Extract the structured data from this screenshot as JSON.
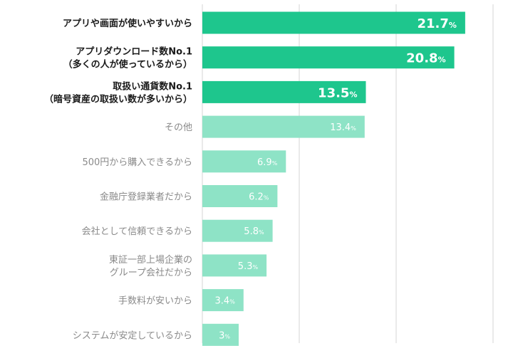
{
  "chart_data": {
    "type": "bar",
    "orientation": "horizontal",
    "unit": "%",
    "categories": [
      [
        "アプリや画面が使いやすいから"
      ],
      [
        "アプリダウンロード数No.1",
        "（多くの人が使っているから）"
      ],
      [
        "取扱い通貨数No.1",
        "（暗号資産の取扱い数が多いから）"
      ],
      [
        "その他"
      ],
      [
        "500円から購入できるから"
      ],
      [
        "金融庁登録業者だから"
      ],
      [
        "会社として信頼できるから"
      ],
      [
        "東証一部上場企業の",
        "グループ会社だから"
      ],
      [
        "手数料が安いから"
      ],
      [
        "システムが安定しているから"
      ]
    ],
    "values": [
      21.7,
      20.8,
      13.5,
      13.4,
      6.9,
      6.2,
      5.8,
      5.3,
      3.4,
      3
    ],
    "value_labels": [
      "21.7",
      "20.8",
      "13.5",
      "13.4",
      "6.9",
      "6.2",
      "5.8",
      "5.3",
      "3.4",
      "3"
    ],
    "highlighted": [
      true,
      true,
      true,
      false,
      false,
      false,
      false,
      false,
      false,
      false
    ],
    "xlim": [
      0,
      24
    ],
    "gridlines": [
      0,
      8,
      16,
      24
    ],
    "colors": {
      "highlight_bar": "#1ec68d",
      "normal_bar": "#8ee3c6",
      "highlight_label": "#1a1a1a",
      "normal_label": "#8a8a8a",
      "gridline": "#d5d5d5",
      "value_text": "#ffffff"
    }
  }
}
